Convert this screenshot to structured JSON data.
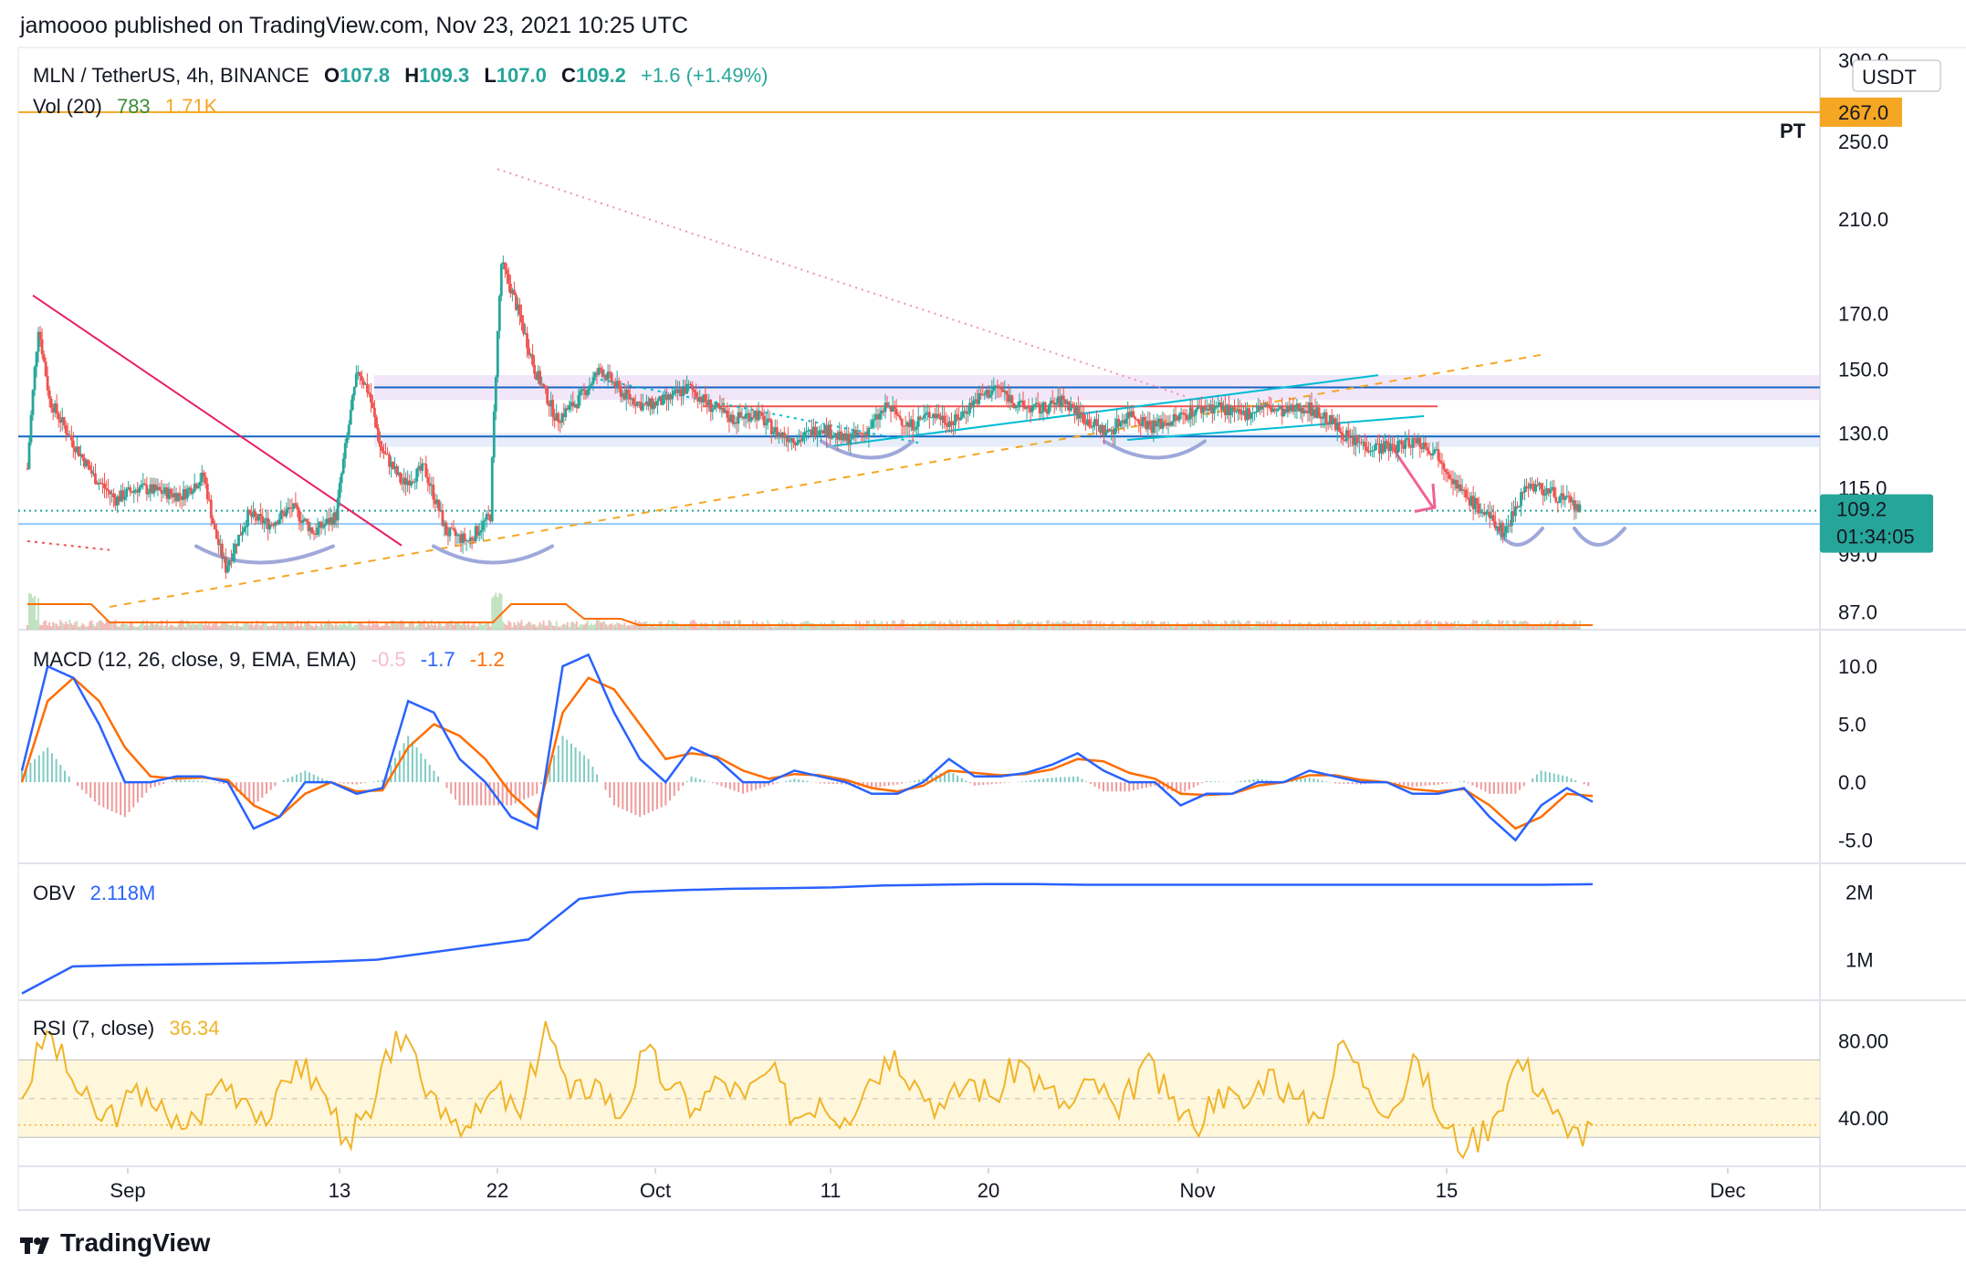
{
  "header": {
    "published": "jamoooo published on TradingView.com, Nov 23, 2021 10:25 UTC"
  },
  "legend": {
    "symbol": "MLN / TetherUS, 4h, BINANCE",
    "o_label": "O",
    "o_value": "107.8",
    "h_label": "H",
    "h_value": "109.3",
    "l_label": "L",
    "l_value": "107.0",
    "c_label": "C",
    "c_value": "109.2",
    "change": "+1.6 (+1.49%)",
    "vol_label": "Vol (20)",
    "vol_value": "783",
    "vol_ma": "1.71K",
    "macd_label": "MACD (12, 26, close, 9, EMA, EMA)",
    "macd_hist": "-0.5",
    "macd_line": "-1.7",
    "macd_signal": "-1.2",
    "obv_label": "OBV",
    "obv_value": "2.118M",
    "rsi_label": "RSI (7, close)",
    "rsi_value": "36.34"
  },
  "axis": {
    "currency": "USDT",
    "price_ticks": [
      "300.0",
      "250.0",
      "210.0",
      "170.0",
      "150.0",
      "130.0",
      "115.0",
      "99.0",
      "87.0"
    ],
    "macd_ticks": [
      "10.0",
      "5.0",
      "0.0",
      "-5.0"
    ],
    "obv_ticks": [
      "2M",
      "1M"
    ],
    "rsi_ticks": [
      "80.00",
      "40.00"
    ],
    "time_ticks": [
      "Sep",
      "13",
      "22",
      "Oct",
      "11",
      "20",
      "Nov",
      "15",
      "Dec"
    ],
    "pt_price": "267.0",
    "pt_label": "PT",
    "last_price": "109.2",
    "countdown": "01:34:05"
  },
  "brand": {
    "name": "TradingView"
  },
  "colors": {
    "up": "#26a69a",
    "down": "#ef5350",
    "macd": "#2962ff",
    "signal": "#ff6d00",
    "rsi": "#f0b429",
    "obv": "#2962ff",
    "pt": "#f5a623",
    "trend_pink": "#e91e63",
    "channel": "#00bcd4",
    "level": "#1565c0",
    "arc": "#9fa8da"
  },
  "chart_data": [
    {
      "type": "candlestick",
      "title": "MLN / TetherUS, 4h, BINANCE",
      "ylabel": "USDT",
      "ylim": [
        85,
        300
      ],
      "x_categories": [
        "Sep",
        "13",
        "22",
        "Oct",
        "11",
        "20",
        "Nov",
        "15",
        "Dec"
      ],
      "price_path": [
        [
          0,
          120
        ],
        [
          1,
          165
        ],
        [
          2,
          140
        ],
        [
          4,
          128
        ],
        [
          6,
          118
        ],
        [
          8,
          112
        ],
        [
          10,
          115
        ],
        [
          12,
          114
        ],
        [
          14,
          113
        ],
        [
          16,
          118
        ],
        [
          17,
          104
        ],
        [
          18,
          96
        ],
        [
          20,
          108
        ],
        [
          22,
          106
        ],
        [
          24,
          110
        ],
        [
          26,
          104
        ],
        [
          28,
          108
        ],
        [
          30,
          150
        ],
        [
          31,
          142
        ],
        [
          32,
          126
        ],
        [
          34,
          116
        ],
        [
          36,
          120
        ],
        [
          38,
          104
        ],
        [
          40,
          102
        ],
        [
          42,
          108
        ],
        [
          43,
          190
        ],
        [
          44,
          178
        ],
        [
          46,
          150
        ],
        [
          48,
          134
        ],
        [
          50,
          140
        ],
        [
          52,
          150
        ],
        [
          54,
          142
        ],
        [
          56,
          138
        ],
        [
          58,
          140
        ],
        [
          60,
          144
        ],
        [
          62,
          138
        ],
        [
          64,
          134
        ],
        [
          66,
          136
        ],
        [
          68,
          130
        ],
        [
          70,
          128
        ],
        [
          72,
          132
        ],
        [
          74,
          128
        ],
        [
          76,
          130
        ],
        [
          78,
          138
        ],
        [
          80,
          132
        ],
        [
          82,
          136
        ],
        [
          84,
          133
        ],
        [
          86,
          140
        ],
        [
          88,
          144
        ],
        [
          90,
          138
        ],
        [
          92,
          137
        ],
        [
          94,
          140
        ],
        [
          96,
          134
        ],
        [
          98,
          130
        ],
        [
          100,
          136
        ],
        [
          102,
          132
        ],
        [
          104,
          134
        ],
        [
          106,
          137
        ],
        [
          108,
          138
        ],
        [
          110,
          135
        ],
        [
          112,
          138
        ],
        [
          114,
          136
        ],
        [
          116,
          138
        ],
        [
          118,
          134
        ],
        [
          120,
          128
        ],
        [
          122,
          126
        ],
        [
          124,
          126
        ],
        [
          126,
          128
        ],
        [
          128,
          124
        ],
        [
          130,
          114
        ],
        [
          132,
          109
        ],
        [
          134,
          104
        ],
        [
          136,
          116
        ],
        [
          138,
          114
        ],
        [
          140,
          111
        ],
        [
          141,
          109.2
        ]
      ],
      "levels": [
        {
          "name": "PT",
          "price": 267
        },
        {
          "name": "resistance",
          "price": 144
        },
        {
          "name": "support",
          "price": 129
        },
        {
          "name": "support-low",
          "price": 106
        }
      ]
    },
    {
      "type": "line",
      "title": "MACD (12, 26, close, 9, EMA, EMA)",
      "ylim": [
        -7,
        13
      ],
      "series": [
        {
          "name": "MACD",
          "values": [
            1,
            10,
            9,
            5,
            0,
            0,
            0.5,
            0.5,
            0,
            -4,
            -3,
            0,
            0,
            -1,
            -0.5,
            7,
            6,
            2,
            0,
            -3,
            -4,
            10,
            11,
            6,
            2,
            0,
            3,
            2,
            0,
            0,
            1,
            0.5,
            0,
            -1,
            -1,
            0,
            2,
            0.5,
            0.5,
            0.8,
            1.5,
            2.5,
            1,
            0,
            0,
            -2,
            -1,
            -1,
            0,
            0,
            1,
            0.5,
            0,
            0,
            -1,
            -1,
            -0.5,
            -3,
            -5,
            -2,
            -0.5,
            -1.7
          ]
        },
        {
          "name": "Signal",
          "values": [
            0,
            7,
            9,
            7,
            3,
            0.5,
            0.3,
            0.4,
            0.2,
            -2,
            -3,
            -1,
            0,
            -0.8,
            -0.7,
            3,
            5,
            4,
            2,
            -1,
            -3,
            6,
            9,
            8,
            5,
            2,
            2.5,
            2.2,
            1,
            0.3,
            0.7,
            0.6,
            0.2,
            -0.5,
            -0.8,
            -0.3,
            1,
            0.8,
            0.6,
            0.7,
            1.1,
            2,
            1.8,
            0.8,
            0.3,
            -1,
            -1.1,
            -1,
            -0.3,
            0,
            0.6,
            0.6,
            0.2,
            0,
            -0.6,
            -0.8,
            -0.6,
            -2,
            -4,
            -3,
            -1,
            -1.2
          ]
        }
      ]
    },
    {
      "type": "line",
      "title": "OBV",
      "ylim": [
        0.4,
        2.4
      ],
      "series": [
        {
          "name": "OBV (M)",
          "values": [
            0.5,
            0.9,
            0.92,
            0.93,
            0.94,
            0.95,
            0.97,
            1.0,
            1.1,
            1.2,
            1.3,
            1.9,
            2.0,
            2.03,
            2.05,
            2.06,
            2.07,
            2.1,
            2.11,
            2.12,
            2.12,
            2.11,
            2.11,
            2.11,
            2.11,
            2.11,
            2.11,
            2.11,
            2.11,
            2.11,
            2.11,
            2.118
          ]
        }
      ]
    },
    {
      "type": "line",
      "title": "RSI (7, close)",
      "ylim": [
        15,
        100
      ],
      "bands": [
        30,
        70
      ],
      "series": [
        {
          "name": "RSI",
          "values": [
            50,
            85,
            60,
            40,
            45,
            55,
            35,
            40,
            60,
            50,
            40,
            70,
            55,
            30,
            40,
            85,
            60,
            45,
            35,
            55,
            40,
            90,
            50,
            60,
            40,
            75,
            55,
            45,
            60,
            50,
            65,
            40,
            50,
            40,
            60,
            75,
            55,
            45,
            60,
            50,
            70,
            55,
            45,
            60,
            40,
            70,
            50,
            35,
            55,
            45,
            65,
            50,
            40,
            80,
            55,
            45,
            70,
            35,
            25,
            40,
            70,
            55,
            30,
            36.34
          ]
        }
      ]
    }
  ]
}
